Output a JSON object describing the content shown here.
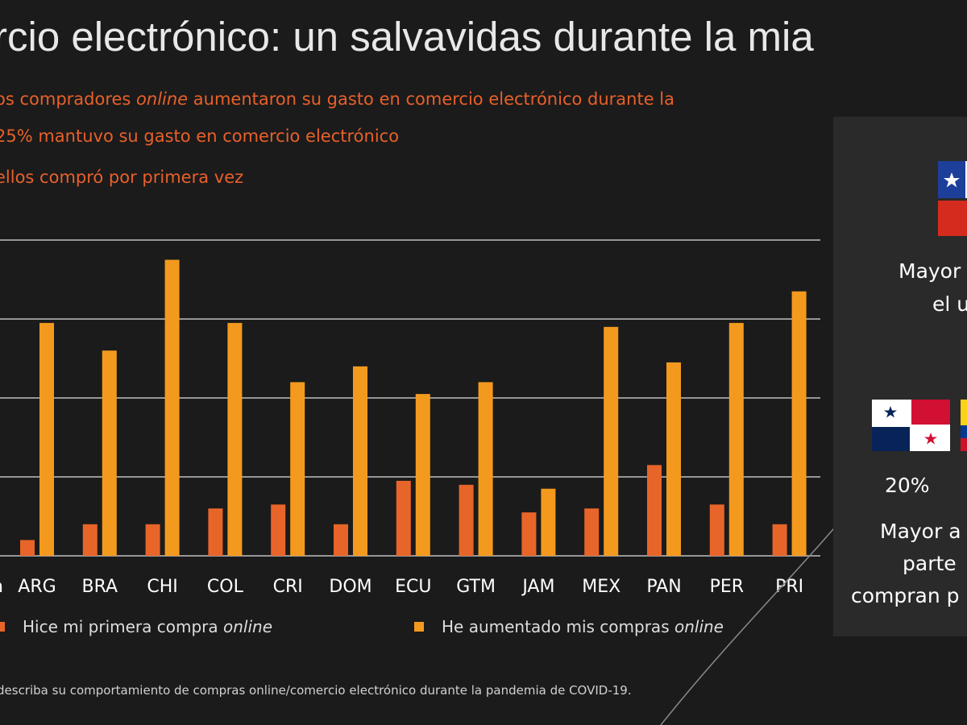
{
  "title": "rcio electrónico: un salvavidas durante la mia",
  "bullets": {
    "b1_pre": "os compradores ",
    "b1_em": "online",
    "b1_post": " aumentaron su gasto en comercio electrónico durante la",
    "b2": "25% mantuvo su gasto en comercio electrónico",
    "b3": "ellos compró por primera vez"
  },
  "chart_data": {
    "type": "bar",
    "categories": [
      "ARG",
      "BRA",
      "CHI",
      "COL",
      "CRI",
      "DOM",
      "ECU",
      "GTM",
      "JAM",
      "MEX",
      "PAN",
      "PER",
      "PRI"
    ],
    "partial_first_tick": "n",
    "series": [
      {
        "name": "Hice mi primera compra online",
        "color": "#e8652a",
        "values": [
          4,
          8,
          8,
          12,
          13,
          8,
          19,
          18,
          11,
          12,
          23,
          13,
          8
        ]
      },
      {
        "name": "He aumentado mis compras online",
        "color": "#f39a1e",
        "values": [
          59,
          52,
          75,
          59,
          44,
          48,
          41,
          44,
          17,
          58,
          49,
          59,
          67
        ]
      }
    ],
    "ylim": [
      0,
      80
    ],
    "grid": true,
    "legend": "bottom"
  },
  "legend": {
    "item1_pre": "Hice mi primera compra ",
    "item1_em": "online",
    "item2_pre": "He aumentado mis compras ",
    "item2_em": "online"
  },
  "source": "describa su comportamiento de compras online/comercio electrónico durante la pandemia de COVID-19.",
  "side_panel": {
    "line1": "Mayor",
    "line2": "el u",
    "percent": "20%",
    "line3": "Mayor a",
    "line4": "parte",
    "line5": "compran p"
  }
}
